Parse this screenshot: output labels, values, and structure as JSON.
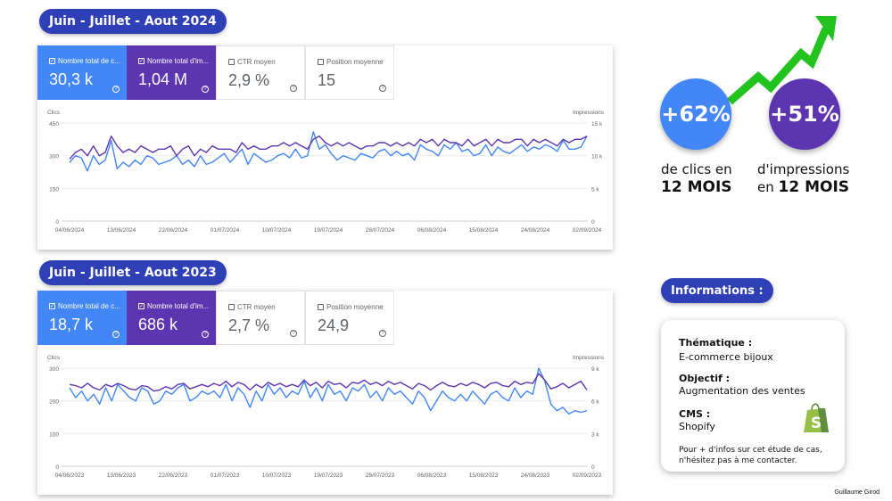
{
  "panel_2024": {
    "title": "Juin - Juillet - Aout 2024",
    "metrics": [
      {
        "label": "Nombre total de c...",
        "value": "30,3 k",
        "checked": true
      },
      {
        "label": "Nombre total d'im...",
        "value": "1,04 M",
        "checked": true
      },
      {
        "label": "CTR moyen",
        "value": "2,9 %",
        "checked": false
      },
      {
        "label": "Position moyenne",
        "value": "15",
        "checked": false
      }
    ]
  },
  "panel_2023": {
    "title": "Juin - Juillet - Aout 2023",
    "metrics": [
      {
        "label": "Nombre total de c...",
        "value": "18,7 k",
        "checked": true
      },
      {
        "label": "Nombre total d'im...",
        "value": "686 k",
        "checked": true
      },
      {
        "label": "CTR moyen",
        "value": "2,7 %",
        "checked": false
      },
      {
        "label": "Position moyenne",
        "value": "24,9",
        "checked": false
      }
    ]
  },
  "chart_data": [
    {
      "type": "line",
      "left_axis_label": "Clics",
      "right_axis_label": "Impressions",
      "left_ticks": [
        "450",
        "300",
        "150",
        "0"
      ],
      "right_ticks": [
        "15 k",
        "10 k",
        "5 k",
        "0"
      ],
      "ylim_left": [
        0,
        450
      ],
      "ylim_right": [
        0,
        15000
      ],
      "x_labels": [
        "04/06/2024",
        "13/06/2024",
        "22/06/2024",
        "01/07/2024",
        "10/07/2024",
        "19/07/2024",
        "28/07/2024",
        "06/08/2024",
        "15/08/2024",
        "24/08/2024",
        "02/09/2024"
      ],
      "series": [
        {
          "axis": "left",
          "color": "#4287f5",
          "values": [
            270,
            300,
            290,
            230,
            300,
            260,
            280,
            370,
            240,
            270,
            250,
            280,
            260,
            300,
            290,
            260,
            270,
            280,
            300,
            260,
            280,
            250,
            300,
            260,
            270,
            290,
            310,
            270,
            300,
            330,
            260,
            310,
            290,
            270,
            280,
            300,
            310,
            290,
            330,
            290,
            300,
            410,
            330,
            350,
            310,
            280,
            300,
            290,
            280,
            310,
            300,
            290,
            320,
            330,
            300,
            320,
            300,
            310,
            280,
            350,
            330,
            320,
            300,
            350,
            330,
            360,
            320,
            330,
            300,
            310,
            350,
            300,
            340,
            320,
            310,
            330,
            350,
            320,
            340,
            330,
            350,
            340,
            320,
            370,
            330,
            330,
            340,
            390
          ]
        },
        {
          "axis": "right",
          "color": "#5e35b1",
          "values": [
            9500,
            10500,
            11000,
            10000,
            11500,
            10000,
            10500,
            13000,
            11500,
            10500,
            11000,
            10500,
            11500,
            11000,
            10500,
            11000,
            11000,
            11500,
            10000,
            11000,
            11500,
            10000,
            11000,
            10500,
            11500,
            11000,
            11000,
            11000,
            10500,
            12000,
            11000,
            11500,
            11000,
            11000,
            11500,
            11500,
            12000,
            11500,
            12000,
            11500,
            11000,
            12500,
            13000,
            12000,
            11500,
            12000,
            11500,
            12000,
            11500,
            11000,
            11500,
            11500,
            12000,
            12000,
            11500,
            12000,
            11500,
            12000,
            11500,
            12500,
            12000,
            12500,
            11500,
            12500,
            12000,
            12000,
            11500,
            12500,
            11500,
            12000,
            12500,
            11500,
            12500,
            12000,
            12000,
            12500,
            12500,
            11500,
            12500,
            12000,
            12500,
            12000,
            11500,
            12500,
            12000,
            12500,
            12500,
            13000
          ]
        }
      ]
    },
    {
      "type": "line",
      "left_axis_label": "Clics",
      "right_axis_label": "Impressions",
      "left_ticks": [
        "300",
        "200",
        "100",
        "0"
      ],
      "right_ticks": [
        "9 k",
        "6 k",
        "3 k",
        "0"
      ],
      "ylim_left": [
        0,
        300
      ],
      "ylim_right": [
        0,
        9000
      ],
      "x_labels": [
        "04/06/2023",
        "13/06/2023",
        "22/06/2023",
        "01/07/2023",
        "10/07/2023",
        "19/07/2023",
        "28/07/2023",
        "06/08/2023",
        "15/08/2023",
        "24/08/2023",
        "02/09/2023"
      ],
      "series": [
        {
          "axis": "left",
          "color": "#4287f5",
          "values": [
            240,
            210,
            230,
            200,
            220,
            190,
            240,
            200,
            250,
            230,
            210,
            200,
            240,
            230,
            190,
            200,
            230,
            220,
            240,
            250,
            200,
            210,
            230,
            220,
            230,
            210,
            250,
            200,
            240,
            220,
            180,
            230,
            200,
            250,
            220,
            240,
            210,
            230,
            220,
            260,
            210,
            240,
            200,
            250,
            220,
            230,
            200,
            240,
            230,
            250,
            210,
            230,
            200,
            240,
            220,
            230,
            210,
            190,
            230,
            210,
            170,
            200,
            230,
            210,
            200,
            220,
            200,
            230,
            210,
            190,
            220,
            230,
            210,
            200,
            240,
            210,
            230,
            220,
            300,
            260,
            190,
            170,
            180,
            160,
            170,
            165,
            170
          ]
        },
        {
          "axis": "right",
          "color": "#5e35b1",
          "values": [
            7500,
            7400,
            7200,
            7600,
            7200,
            7000,
            7500,
            7300,
            7600,
            7400,
            7100,
            7000,
            7400,
            7300,
            6900,
            7000,
            7300,
            7100,
            7500,
            7600,
            7100,
            7300,
            7500,
            7300,
            7600,
            7400,
            7800,
            7300,
            7700,
            7500,
            7000,
            7500,
            7200,
            7700,
            7400,
            7600,
            7300,
            7500,
            7300,
            7900,
            7400,
            7700,
            7200,
            7800,
            7500,
            7600,
            7200,
            7700,
            7600,
            7900,
            7500,
            7700,
            7400,
            7800,
            7500,
            7700,
            7400,
            7100,
            7600,
            7400,
            7000,
            7400,
            7700,
            7400,
            7300,
            7600,
            7400,
            7700,
            7500,
            7200,
            7600,
            7700,
            7400,
            7300,
            7800,
            7500,
            7700,
            7600,
            8500,
            7900,
            7100,
            7300,
            7600,
            7200,
            7500,
            7800,
            7000
          ]
        }
      ]
    }
  ],
  "stats": {
    "clicks_pct": "+62%",
    "clicks_line1": "de clics en",
    "clicks_line2": "12 MOIS",
    "impr_pct": "+51%",
    "impr_line1": "d'impressions",
    "impr_line2_prefix": "en ",
    "impr_line2_strong": "12 MOIS",
    "colors": {
      "clicks": "#4287f5",
      "impressions": "#5e35b1",
      "arrow": "#22c31e"
    }
  },
  "info": {
    "title": "Informations :",
    "thematique_label": "Thématique :",
    "thematique_value": "E-commerce bijoux",
    "objectif_label": "Objectif :",
    "objectif_value": "Augmentation des ventes",
    "cms_label": "CMS :",
    "cms_value": "Shopify",
    "cms_icon": "shopify-bag-icon",
    "note": "Pour + d'infos sur cet étude de cas, n'hésitez pas à me contacter."
  },
  "credit": "Guillaume Girod"
}
